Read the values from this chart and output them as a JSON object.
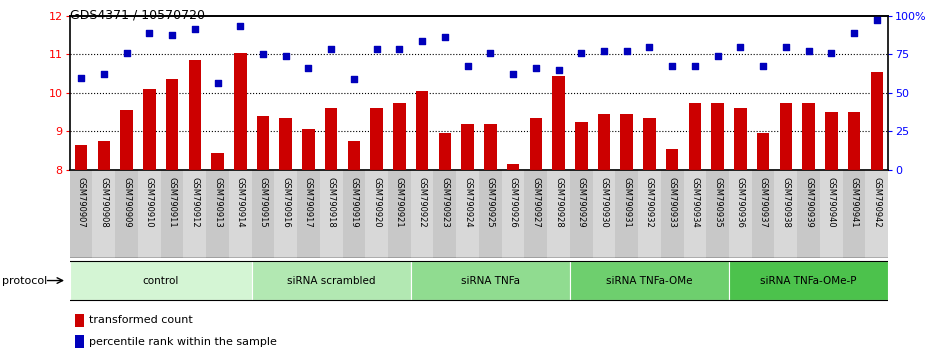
{
  "title": "GDS4371 / 10570720",
  "samples": [
    "GSM790907",
    "GSM790908",
    "GSM790909",
    "GSM790910",
    "GSM790911",
    "GSM790912",
    "GSM790913",
    "GSM790914",
    "GSM790915",
    "GSM790916",
    "GSM790917",
    "GSM790918",
    "GSM790919",
    "GSM790920",
    "GSM790921",
    "GSM790922",
    "GSM790923",
    "GSM790924",
    "GSM790925",
    "GSM790926",
    "GSM790927",
    "GSM790928",
    "GSM790929",
    "GSM790930",
    "GSM790931",
    "GSM790932",
    "GSM790933",
    "GSM790934",
    "GSM790935",
    "GSM790936",
    "GSM790937",
    "GSM790938",
    "GSM790939",
    "GSM790940",
    "GSM790941",
    "GSM790942"
  ],
  "bar_values": [
    8.65,
    8.75,
    9.55,
    10.1,
    10.35,
    10.85,
    8.45,
    11.05,
    9.4,
    9.35,
    9.05,
    9.6,
    8.75,
    9.6,
    9.75,
    10.05,
    8.95,
    9.2,
    9.2,
    8.15,
    9.35,
    10.45,
    9.25,
    9.45,
    9.45,
    9.35,
    8.55,
    9.75,
    9.75,
    9.6,
    8.95,
    9.75,
    9.75,
    9.5,
    9.5,
    10.55
  ],
  "dot_values": [
    10.4,
    10.5,
    11.05,
    11.55,
    11.5,
    11.65,
    10.25,
    11.75,
    11.0,
    10.95,
    10.65,
    11.15,
    10.35,
    11.15,
    11.15,
    11.35,
    11.45,
    10.7,
    11.05,
    10.5,
    10.65,
    10.6,
    11.05,
    11.1,
    11.1,
    11.2,
    10.7,
    10.7,
    10.95,
    11.2,
    10.7,
    11.2,
    11.1,
    11.05,
    11.55,
    11.9
  ],
  "groups": [
    {
      "label": "control",
      "start": 0,
      "end": 8
    },
    {
      "label": "siRNA scrambled",
      "start": 8,
      "end": 15
    },
    {
      "label": "siRNA TNFa",
      "start": 15,
      "end": 22
    },
    {
      "label": "siRNA TNFa-OMe",
      "start": 22,
      "end": 29
    },
    {
      "label": "siRNA TNFa-OMe-P",
      "start": 29,
      "end": 36
    }
  ],
  "group_colors": [
    "#d4f5d4",
    "#b2e8b2",
    "#90dc90",
    "#6ecf6e",
    "#4cc24c"
  ],
  "ylim_left": [
    8,
    12
  ],
  "ylim_right": [
    0,
    100
  ],
  "yticks_left": [
    8,
    9,
    10,
    11,
    12
  ],
  "yticks_right": [
    0,
    25,
    50,
    75,
    100
  ],
  "bar_color": "#cc0000",
  "dot_color": "#0000bb",
  "bar_width": 0.55,
  "legend_items": [
    {
      "label": "transformed count",
      "color": "#cc0000"
    },
    {
      "label": "percentile rank within the sample",
      "color": "#0000bb"
    }
  ],
  "protocol_label": "protocol",
  "grid_lines": [
    9,
    10,
    11
  ],
  "xticklabel_bg_even": "#c8c8c8",
  "xticklabel_bg_odd": "#d8d8d8"
}
